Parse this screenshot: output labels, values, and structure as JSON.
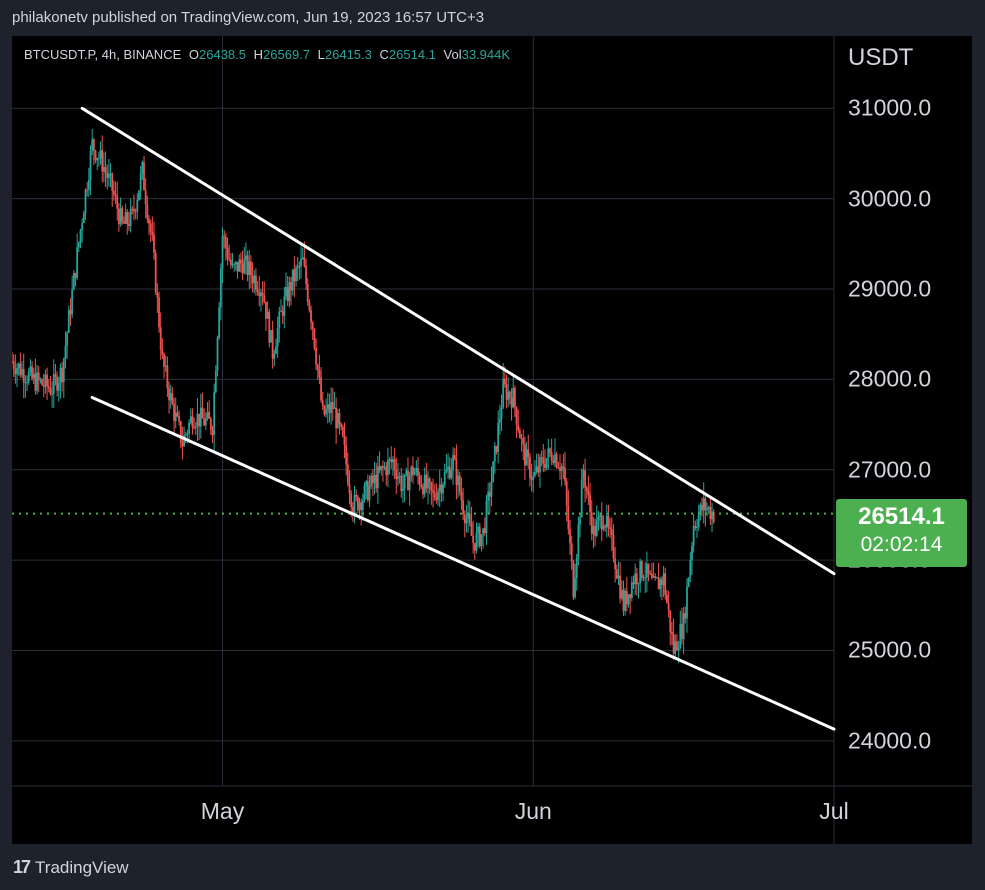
{
  "publisher_line": "philakonetv published on TradingView.com, Jun 19, 2023 16:57 UTC+3",
  "legend": {
    "symbol": "BTCUSDT.P, 4h, BINANCE",
    "o_label": "O",
    "o_value": "26438.5",
    "h_label": "H",
    "h_value": "26569.7",
    "l_label": "L",
    "l_value": "26415.3",
    "c_label": "C",
    "c_value": "26514.1",
    "vol_label": "Vol",
    "vol_value": "33.944K"
  },
  "price_box": {
    "price": "26514.1",
    "countdown": "02:02:14"
  },
  "brand": {
    "logo": "17",
    "name": "TradingView"
  },
  "colors": {
    "up": "#26a69a",
    "down": "#ef5350",
    "last_price": "#4caf50",
    "trendline": "#ffffff"
  },
  "chart_data": {
    "type": "candlestick",
    "unit": "USDT",
    "y_ticks": [
      "24000.0",
      "25000.0",
      "26000.0",
      "27000.0",
      "28000.0",
      "29000.0",
      "30000.0",
      "31000.0"
    ],
    "x_ticks": [
      "May",
      "Jun",
      "Jul"
    ],
    "ylim": [
      23500,
      31800
    ],
    "xlim": [
      "2023-04-10",
      "2023-07-01"
    ],
    "last_price": 26514.1,
    "grid": true,
    "price_path": [
      [
        "2023-04-10",
        28200
      ],
      [
        "2023-04-12",
        28000
      ],
      [
        "2023-04-14",
        27900
      ],
      [
        "2023-04-15",
        28100
      ],
      [
        "2023-04-17",
        29800
      ],
      [
        "2023-04-18",
        30600
      ],
      [
        "2023-04-19",
        30400
      ],
      [
        "2023-04-20",
        30100
      ],
      [
        "2023-04-21",
        29700
      ],
      [
        "2023-04-22",
        29800
      ],
      [
        "2023-04-23",
        30300
      ],
      [
        "2023-04-24",
        29500
      ],
      [
        "2023-04-25",
        28200
      ],
      [
        "2023-04-26",
        27700
      ],
      [
        "2023-04-27",
        27300
      ],
      [
        "2023-04-28",
        27600
      ],
      [
        "2023-04-30",
        27500
      ],
      [
        "2023-05-01",
        29600
      ],
      [
        "2023-05-02",
        29200
      ],
      [
        "2023-05-03",
        29300
      ],
      [
        "2023-05-05",
        29000
      ],
      [
        "2023-05-06",
        28300
      ],
      [
        "2023-05-07",
        28800
      ],
      [
        "2023-05-08",
        29100
      ],
      [
        "2023-05-09",
        29300
      ],
      [
        "2023-05-10",
        28600
      ],
      [
        "2023-05-11",
        27600
      ],
      [
        "2023-05-12",
        27700
      ],
      [
        "2023-05-13",
        27300
      ],
      [
        "2023-05-14",
        26600
      ],
      [
        "2023-05-15",
        26700
      ],
      [
        "2023-05-17",
        27000
      ],
      [
        "2023-05-18",
        27100
      ],
      [
        "2023-05-19",
        26800
      ],
      [
        "2023-05-20",
        27000
      ],
      [
        "2023-05-22",
        26700
      ],
      [
        "2023-05-23",
        26900
      ],
      [
        "2023-05-24",
        27100
      ],
      [
        "2023-05-25",
        26600
      ],
      [
        "2023-05-26",
        26200
      ],
      [
        "2023-05-27",
        26300
      ],
      [
        "2023-05-28",
        27000
      ],
      [
        "2023-05-29",
        27900
      ],
      [
        "2023-05-30",
        27800
      ],
      [
        "2023-05-31",
        27200
      ],
      [
        "2023-06-01",
        26900
      ],
      [
        "2023-06-02",
        27100
      ],
      [
        "2023-06-03",
        27200
      ],
      [
        "2023-06-04",
        27000
      ],
      [
        "2023-06-05",
        25700
      ],
      [
        "2023-06-06",
        27000
      ],
      [
        "2023-06-07",
        26300
      ],
      [
        "2023-06-08",
        26500
      ],
      [
        "2023-06-09",
        26100
      ],
      [
        "2023-06-10",
        25500
      ],
      [
        "2023-06-11",
        25800
      ],
      [
        "2023-06-12",
        25900
      ],
      [
        "2023-06-13",
        25700
      ],
      [
        "2023-06-14",
        25800
      ],
      [
        "2023-06-15",
        25000
      ],
      [
        "2023-06-16",
        25300
      ],
      [
        "2023-06-17",
        26400
      ],
      [
        "2023-06-18",
        26600
      ],
      [
        "2023-06-19",
        26514
      ]
    ],
    "annotations": {
      "trendlines": [
        {
          "name": "upper channel line",
          "from": [
            "2023-04-17",
            31000
          ],
          "to": [
            "2023-07-01",
            25850
          ]
        },
        {
          "name": "lower channel line",
          "from": [
            "2023-04-18",
            27800
          ],
          "to": [
            "2023-07-01",
            24130
          ]
        }
      ]
    }
  }
}
